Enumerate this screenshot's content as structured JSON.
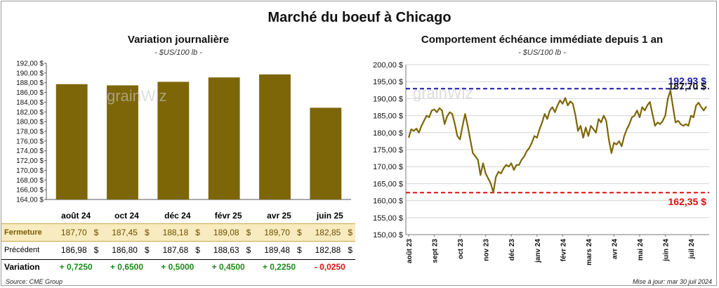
{
  "title": "Marché du boeuf à Chicago",
  "source": "Source: CME Group",
  "updated": "Mise à jour: mar 30 juil 2024",
  "watermark": "grainWiz",
  "colors": {
    "bar": "#7d6608",
    "high_line": "#1a1aa8",
    "low_line": "#e01010",
    "price_line": "#7d6608",
    "pos": "#1a8a1a",
    "neg": "#e01010"
  },
  "left": {
    "subtitle": "Variation journalière",
    "unit": "- $US/100 lb -",
    "table": {
      "contracts": [
        "août 24",
        "oct 24",
        "déc 24",
        "févr 25",
        "avr 25",
        "juin 25"
      ],
      "rows": [
        {
          "label": "Fermeture",
          "values": [
            "187,70",
            "187,45",
            "188,18",
            "189,08",
            "189,70",
            "182,85"
          ]
        },
        {
          "label": "Précédent",
          "values": [
            "186,98",
            "186,80",
            "187,68",
            "188,63",
            "189,48",
            "182,88"
          ]
        },
        {
          "label": "Variation",
          "values": [
            "+ 0,7250",
            "+ 0,6500",
            "+ 0,5000",
            "+ 0,4500",
            "+ 0,2250",
            "- 0,0250"
          ]
        }
      ],
      "currency": "$"
    }
  },
  "right": {
    "subtitle": "Comportement échéance immédiate depuis 1 an",
    "unit": "- $US/100 lb -",
    "high_label": "192,93 $",
    "low_label": "162,35 $",
    "last_label": "187,70 $"
  },
  "chart_data": [
    {
      "type": "bar",
      "title": "Variation journalière",
      "categories": [
        "août 24",
        "oct 24",
        "déc 24",
        "févr 25",
        "avr 25",
        "juin 25"
      ],
      "values": [
        187.7,
        187.45,
        188.18,
        189.08,
        189.7,
        182.85
      ],
      "ylim": [
        164,
        192
      ],
      "yticks": [
        "164,00 $",
        "166,00 $",
        "168,00 $",
        "170,00 $",
        "172,00 $",
        "174,00 $",
        "176,00 $",
        "178,00 $",
        "180,00 $",
        "182,00 $",
        "184,00 $",
        "186,00 $",
        "188,00 $",
        "190,00 $",
        "192,00 $"
      ]
    },
    {
      "type": "line",
      "title": "Comportement échéance immédiate depuis 1 an",
      "ylim": [
        150,
        200
      ],
      "yticks": [
        "150,00 $",
        "155,00 $",
        "160,00 $",
        "165,00 $",
        "170,00 $",
        "175,00 $",
        "180,00 $",
        "185,00 $",
        "190,00 $",
        "195,00 $",
        "200,00 $"
      ],
      "xticks": [
        "août 23",
        "sept 23",
        "oct 23",
        "nov 23",
        "déc 23",
        "janv 24",
        "févr 24",
        "mars 24",
        "avr 24",
        "mai 24",
        "juin 24",
        "juil 24"
      ],
      "reference_lines": [
        {
          "name": "Haut",
          "value": 192.93
        },
        {
          "name": "Bas",
          "value": 162.35
        }
      ],
      "last_value": 187.7,
      "series": [
        {
          "x": [
            0,
            0.1,
            0.2,
            0.3,
            0.4,
            0.5,
            0.6,
            0.7,
            0.8,
            0.9,
            1.0,
            1.1,
            1.2,
            1.3,
            1.4,
            1.5,
            1.6,
            1.7,
            1.8,
            1.9,
            2.0,
            2.1,
            2.2,
            2.3,
            2.4,
            2.5,
            2.6,
            2.7,
            2.8,
            2.9,
            3.0,
            3.1,
            3.2,
            3.3,
            3.4,
            3.5,
            3.6,
            3.7,
            3.8,
            3.9,
            4.0,
            4.1,
            4.2,
            4.3,
            4.4,
            4.5,
            4.6,
            4.7,
            4.8,
            4.9,
            5.0,
            5.1,
            5.2,
            5.3,
            5.4,
            5.5,
            5.6,
            5.7,
            5.8,
            5.9,
            6.0,
            6.1,
            6.2,
            6.3,
            6.4,
            6.5,
            6.6,
            6.7,
            6.8,
            6.9,
            7.0,
            7.1,
            7.2,
            7.3,
            7.4,
            7.5,
            7.6,
            7.7,
            7.8,
            7.9,
            8.0,
            8.1,
            8.2,
            8.3,
            8.4,
            8.5,
            8.6,
            8.7,
            8.8,
            8.9,
            9.0,
            9.1,
            9.2,
            9.3,
            9.4,
            9.5,
            9.6,
            9.7,
            9.8,
            9.9,
            10.0,
            10.1,
            10.2,
            10.3,
            10.4,
            10.5,
            10.6,
            10.7,
            10.8,
            10.9,
            11.0,
            11.1,
            11.2,
            11.3,
            11.4,
            11.5,
            11.6
          ],
          "y": [
            178.5,
            181.0,
            180.5,
            181.2,
            180.0,
            182.0,
            183.5,
            185.0,
            184.5,
            186.5,
            186.8,
            186.0,
            187.2,
            186.5,
            182.5,
            184.8,
            186.0,
            185.5,
            182.5,
            179.0,
            178.0,
            182.0,
            185.5,
            182.0,
            178.0,
            174.0,
            173.0,
            172.0,
            167.5,
            171.0,
            168.0,
            166.5,
            165.0,
            162.4,
            167.0,
            168.5,
            168.0,
            169.5,
            170.5,
            170.0,
            171.0,
            169.0,
            170.5,
            170.5,
            172.0,
            173.0,
            174.5,
            175.5,
            177.0,
            179.0,
            178.5,
            181.0,
            183.0,
            185.5,
            184.0,
            186.5,
            187.5,
            186.0,
            188.0,
            189.5,
            188.5,
            190.2,
            188.0,
            189.2,
            188.5,
            185.0,
            180.5,
            182.0,
            178.5,
            181.5,
            179.0,
            182.0,
            181.0,
            180.0,
            184.0,
            183.0,
            185.0,
            183.5,
            178.0,
            174.0,
            177.0,
            176.5,
            177.5,
            176.0,
            179.0,
            181.0,
            182.5,
            184.5,
            185.0,
            186.5,
            184.5,
            187.5,
            186.5,
            188.0,
            189.0,
            185.5,
            182.0,
            183.0,
            182.5,
            183.5,
            185.0,
            190.0,
            192.4,
            187.5,
            183.0,
            183.5,
            182.5,
            182.0,
            182.5,
            182.0,
            185.0,
            184.5,
            188.0,
            188.8,
            187.5,
            186.5,
            187.7
          ]
        }
      ]
    }
  ]
}
